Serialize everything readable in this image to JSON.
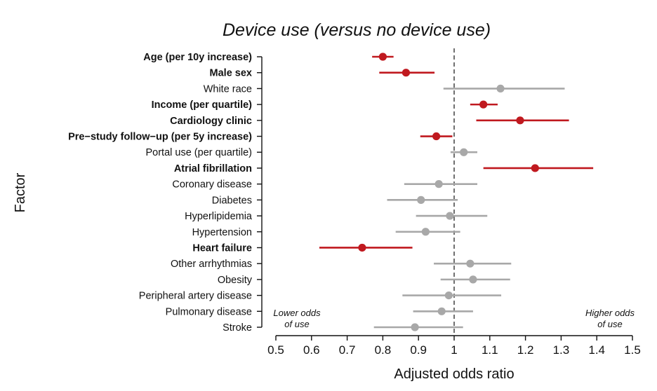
{
  "chart_data": {
    "type": "forest",
    "title": "Device use (versus no device use)",
    "xlabel": "Adjusted odds ratio",
    "ylabel": "Factor",
    "xlim": [
      0.5,
      1.5
    ],
    "xticks": [
      "0.5",
      "0.6",
      "0.7",
      "0.8",
      "0.9",
      "1",
      "1.1",
      "1.2",
      "1.3",
      "1.4",
      "1.5"
    ],
    "reference_line": 1.0,
    "annotations": {
      "lower_line1": "Lower odds",
      "lower_line2": "of use",
      "higher_line1": "Higher odds",
      "higher_line2": "of use"
    },
    "colors": {
      "significant": "#c0191f",
      "nonsignificant": "#a8a8a8"
    },
    "factors": [
      {
        "label": "Age (per 10y increase)",
        "or": 0.8,
        "lo": 0.77,
        "hi": 0.83,
        "significant": true
      },
      {
        "label": "Male sex",
        "or": 0.865,
        "lo": 0.79,
        "hi": 0.945,
        "significant": true
      },
      {
        "label": "White race",
        "or": 1.13,
        "lo": 0.97,
        "hi": 1.31,
        "significant": false
      },
      {
        "label": "Income (per quartile)",
        "or": 1.082,
        "lo": 1.045,
        "hi": 1.122,
        "significant": true
      },
      {
        "label": "Cardiology clinic",
        "or": 1.185,
        "lo": 1.062,
        "hi": 1.322,
        "significant": true
      },
      {
        "label": "Pre−study follow−up (per 5y increase)",
        "or": 0.95,
        "lo": 0.905,
        "hi": 0.995,
        "significant": true
      },
      {
        "label": "Portal use (per quartile)",
        "or": 1.027,
        "lo": 0.99,
        "hi": 1.065,
        "significant": false
      },
      {
        "label": "Atrial fibrillation",
        "or": 1.227,
        "lo": 1.082,
        "hi": 1.39,
        "significant": true
      },
      {
        "label": "Coronary disease",
        "or": 0.957,
        "lo": 0.86,
        "hi": 1.065,
        "significant": false
      },
      {
        "label": "Diabetes",
        "or": 0.907,
        "lo": 0.812,
        "hi": 1.01,
        "significant": false
      },
      {
        "label": "Hyperlipidemia",
        "or": 0.988,
        "lo": 0.893,
        "hi": 1.093,
        "significant": false
      },
      {
        "label": "Hypertension",
        "or": 0.92,
        "lo": 0.836,
        "hi": 1.017,
        "significant": false
      },
      {
        "label": "Heart failure",
        "or": 0.742,
        "lo": 0.622,
        "hi": 0.883,
        "significant": true
      },
      {
        "label": "Other arrhythmias",
        "or": 1.045,
        "lo": 0.943,
        "hi": 1.16,
        "significant": false
      },
      {
        "label": "Obesity",
        "or": 1.053,
        "lo": 0.962,
        "hi": 1.157,
        "significant": false
      },
      {
        "label": "Peripheral artery disease",
        "or": 0.985,
        "lo": 0.855,
        "hi": 1.132,
        "significant": false
      },
      {
        "label": "Pulmonary disease",
        "or": 0.965,
        "lo": 0.885,
        "hi": 1.053,
        "significant": false
      },
      {
        "label": "Stroke",
        "or": 0.89,
        "lo": 0.775,
        "hi": 1.025,
        "significant": false
      }
    ]
  }
}
